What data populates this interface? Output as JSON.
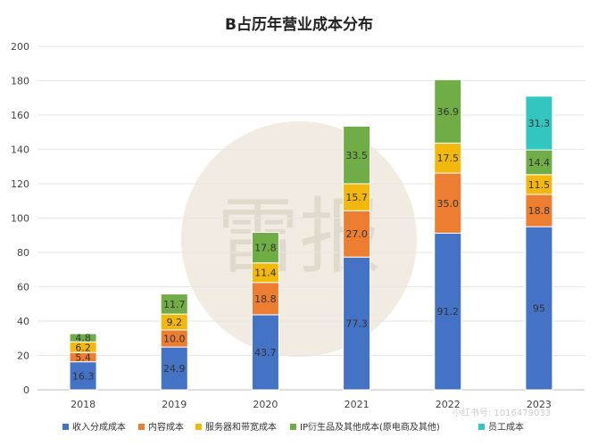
{
  "chart_data": {
    "type": "bar",
    "stacked": true,
    "title": "B占历年营业成本分布",
    "categories": [
      "2018",
      "2019",
      "2020",
      "2021",
      "2022",
      "2023"
    ],
    "ylim": [
      0,
      200
    ],
    "yticks": [
      0,
      20,
      40,
      60,
      80,
      100,
      120,
      140,
      160,
      180,
      200
    ],
    "legend_position": "bottom",
    "series": [
      {
        "name": "收入分成成本",
        "color": "#4472C4",
        "values": [
          16.3,
          24.9,
          43.7,
          77.3,
          91.2,
          95
        ]
      },
      {
        "name": "内容成本",
        "color": "#ED7D31",
        "values": [
          5.4,
          10.0,
          18.8,
          27.0,
          35.0,
          18.8
        ]
      },
      {
        "name": "服务器和带宽成本",
        "color": "#F2B90C",
        "values": [
          6.2,
          9.2,
          11.4,
          15.7,
          17.5,
          11.5
        ]
      },
      {
        "name": "IP衍生品及其他成本(原电商及其他)",
        "color": "#70AD47",
        "values": [
          4.8,
          11.7,
          17.8,
          33.5,
          36.9,
          14.4
        ]
      },
      {
        "name": "员工成本",
        "color": "#33C6C0",
        "values": [
          null,
          null,
          null,
          null,
          null,
          31.3
        ]
      }
    ],
    "value_labels": [
      [
        "16.3",
        "24.9",
        "43.7",
        "77.3",
        "91.2",
        "95"
      ],
      [
        "5.4",
        "10.0",
        "18.8",
        "27.0",
        "35.0",
        "18.8"
      ],
      [
        "6.2",
        "9.2",
        "11.4",
        "15.7",
        "17.5",
        "11.5"
      ],
      [
        "4.8",
        "11.7",
        "17.8",
        "33.5",
        "36.9",
        "14.4"
      ],
      [
        null,
        null,
        null,
        null,
        null,
        "31.3"
      ]
    ],
    "watermark": "雷报",
    "source_caption": "小红书号: 1016479033"
  }
}
